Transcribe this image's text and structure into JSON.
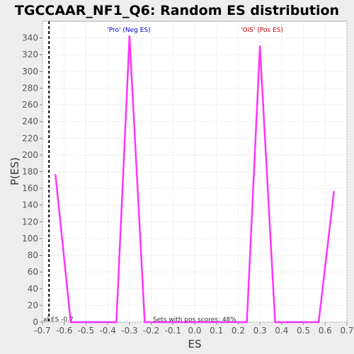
{
  "chart_data": {
    "type": "line",
    "title": "TGCCAAR_NF1_Q6: Random ES distribution",
    "xlabel": "ES",
    "ylabel": "P(ES)",
    "xlim": [
      -0.7,
      0.7
    ],
    "ylim": [
      0,
      360
    ],
    "x_ticks": [
      -0.7,
      -0.6,
      -0.5,
      -0.4,
      -0.3,
      -0.2,
      -0.1,
      0.0,
      0.1,
      0.2,
      0.3,
      0.4,
      0.5,
      0.6,
      0.7
    ],
    "x_tick_labels": [
      "-0.7",
      "-0.6",
      "-0.5",
      "-0.4",
      "-0.3",
      "-0.2",
      "-0.1",
      "0.0",
      "0.1",
      "0.2",
      "0.3",
      "0.4",
      "0.5",
      "0.6",
      "0.7"
    ],
    "y_ticks": [
      0,
      20,
      40,
      60,
      80,
      100,
      120,
      140,
      160,
      180,
      200,
      220,
      240,
      260,
      280,
      300,
      320,
      340
    ],
    "y_tick_labels": [
      "0",
      "20",
      "40",
      "60",
      "80",
      "100",
      "120",
      "140",
      "160",
      "180",
      "200",
      "220",
      "240",
      "260",
      "280",
      "300",
      "320",
      "340"
    ],
    "grid": true,
    "series": [
      {
        "color": "#ff33ff",
        "x": [
          -0.64,
          -0.57,
          -0.36,
          -0.3,
          -0.23,
          0.24,
          0.3,
          0.37,
          0.57,
          0.64
        ],
        "y": [
          176,
          0,
          0,
          342,
          0,
          0,
          330,
          0,
          0,
          156
        ]
      }
    ],
    "reference_line": {
      "x": -0.67,
      "style": "dashed",
      "color": "#000000",
      "label": "al ES -0.7"
    },
    "annotations": [
      {
        "text": "'Pro' (Neg ES)",
        "x": -0.3,
        "color": "#0000cc"
      },
      {
        "text": "'OIS' (Pos ES)",
        "x": 0.3,
        "color": "#cc0000"
      }
    ],
    "footnote": "Sets with pos scores: 48%"
  }
}
